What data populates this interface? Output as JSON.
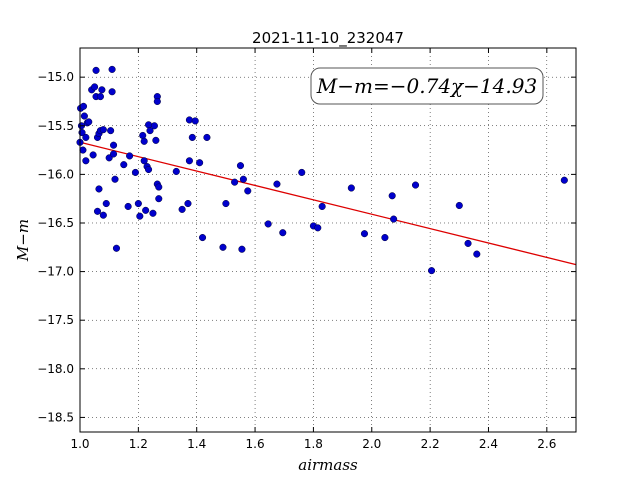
{
  "chart_data": {
    "type": "scatter",
    "title": "2021-11-10_232047",
    "xlabel": "airmass",
    "ylabel": "M−m",
    "xlim": [
      1.0,
      2.7
    ],
    "ylim": [
      -18.65,
      -14.7
    ],
    "x_ticks": [
      1.0,
      1.2,
      1.4,
      1.6,
      1.8,
      2.0,
      2.2,
      2.4,
      2.6
    ],
    "x_tick_labels": [
      "1.0",
      "1.2",
      "1.4",
      "1.6",
      "1.8",
      "2.0",
      "2.2",
      "2.4",
      "2.6"
    ],
    "y_ticks": [
      -15.0,
      -15.5,
      -16.0,
      -16.5,
      -17.0,
      -17.5,
      -18.0,
      -18.5
    ],
    "y_tick_labels": [
      "−15.0",
      "−15.5",
      "−16.0",
      "−16.5",
      "−17.0",
      "−17.5",
      "−18.0",
      "−18.5"
    ],
    "grid": true,
    "annotation": "M−m=−0.74χ−14.93",
    "marker_color": "#0000cc",
    "fit_color": "#dd0000",
    "fit_line": {
      "slope": -0.74,
      "intercept": -14.93
    },
    "points": [
      [
        1.0,
        -15.67
      ],
      [
        1.002,
        -15.32
      ],
      [
        1.005,
        -15.5
      ],
      [
        1.007,
        -15.57
      ],
      [
        1.01,
        -15.75
      ],
      [
        1.012,
        -15.3
      ],
      [
        1.015,
        -15.4
      ],
      [
        1.02,
        -15.62
      ],
      [
        1.02,
        -15.86
      ],
      [
        1.025,
        -15.47
      ],
      [
        1.03,
        -15.46
      ],
      [
        1.04,
        -15.13
      ],
      [
        1.045,
        -15.8
      ],
      [
        1.05,
        -15.1
      ],
      [
        1.055,
        -14.93
      ],
      [
        1.055,
        -15.2
      ],
      [
        1.06,
        -15.62
      ],
      [
        1.065,
        -15.58
      ],
      [
        1.06,
        -16.38
      ],
      [
        1.065,
        -16.15
      ],
      [
        1.07,
        -15.55
      ],
      [
        1.07,
        -15.2
      ],
      [
        1.075,
        -15.13
      ],
      [
        1.08,
        -15.54
      ],
      [
        1.08,
        -16.42
      ],
      [
        1.09,
        -16.3
      ],
      [
        1.1,
        -15.83
      ],
      [
        1.105,
        -15.55
      ],
      [
        1.11,
        -15.15
      ],
      [
        1.11,
        -14.92
      ],
      [
        1.115,
        -15.79
      ],
      [
        1.115,
        -15.7
      ],
      [
        1.12,
        -16.05
      ],
      [
        1.125,
        -16.76
      ],
      [
        1.15,
        -15.9
      ],
      [
        1.165,
        -16.33
      ],
      [
        1.17,
        -15.81
      ],
      [
        1.19,
        -15.98
      ],
      [
        1.2,
        -16.3
      ],
      [
        1.205,
        -16.43
      ],
      [
        1.215,
        -15.6
      ],
      [
        1.22,
        -15.66
      ],
      [
        1.22,
        -15.86
      ],
      [
        1.225,
        -16.37
      ],
      [
        1.23,
        -15.92
      ],
      [
        1.235,
        -15.95
      ],
      [
        1.235,
        -15.49
      ],
      [
        1.24,
        -15.55
      ],
      [
        1.25,
        -16.4
      ],
      [
        1.255,
        -15.5
      ],
      [
        1.26,
        -15.65
      ],
      [
        1.265,
        -15.2
      ],
      [
        1.265,
        -15.25
      ],
      [
        1.265,
        -16.1
      ],
      [
        1.27,
        -16.13
      ],
      [
        1.27,
        -16.25
      ],
      [
        1.33,
        -15.97
      ],
      [
        1.35,
        -16.36
      ],
      [
        1.37,
        -16.3
      ],
      [
        1.375,
        -15.86
      ],
      [
        1.375,
        -15.44
      ],
      [
        1.385,
        -15.62
      ],
      [
        1.395,
        -15.45
      ],
      [
        1.41,
        -15.88
      ],
      [
        1.42,
        -16.65
      ],
      [
        1.435,
        -15.62
      ],
      [
        1.49,
        -16.75
      ],
      [
        1.5,
        -16.3
      ],
      [
        1.53,
        -16.08
      ],
      [
        1.55,
        -15.91
      ],
      [
        1.555,
        -16.77
      ],
      [
        1.56,
        -16.05
      ],
      [
        1.575,
        -16.17
      ],
      [
        1.645,
        -16.51
      ],
      [
        1.675,
        -16.1
      ],
      [
        1.695,
        -16.6
      ],
      [
        1.76,
        -15.98
      ],
      [
        1.8,
        -16.53
      ],
      [
        1.815,
        -16.55
      ],
      [
        1.83,
        -16.33
      ],
      [
        1.93,
        -16.14
      ],
      [
        1.975,
        -16.61
      ],
      [
        2.045,
        -16.65
      ],
      [
        2.07,
        -16.22
      ],
      [
        2.075,
        -16.46
      ],
      [
        2.15,
        -16.11
      ],
      [
        2.205,
        -16.99
      ],
      [
        2.3,
        -16.32
      ],
      [
        2.33,
        -16.71
      ],
      [
        2.36,
        -16.82
      ],
      [
        2.66,
        -16.06
      ]
    ]
  }
}
